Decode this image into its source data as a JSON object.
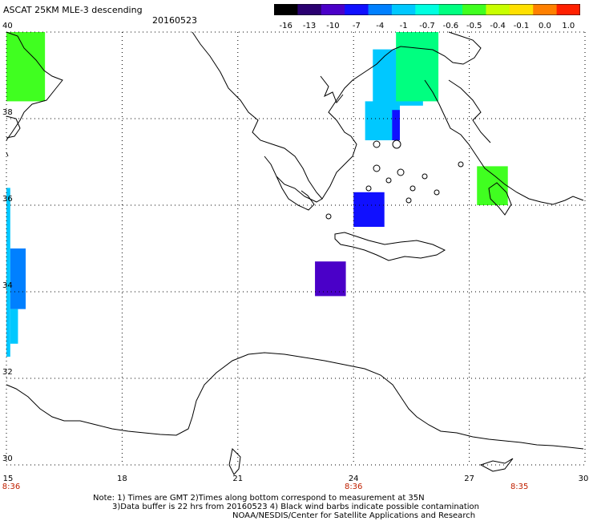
{
  "header": {
    "title": "ASCAT 25KM MLE-3 descending",
    "date": "20160523"
  },
  "colorbar": {
    "labels": [
      "-16",
      "-13",
      "-10",
      "-7",
      "-4",
      "-1",
      "-0.7",
      "-0.6",
      "-0.5",
      "-0.4",
      "-0.1",
      "0.0",
      "1.0"
    ],
    "colors": [
      "#000000",
      "#2a0070",
      "#4a00c8",
      "#1010ff",
      "#0080ff",
      "#00c8ff",
      "#00ffe0",
      "#00ff80",
      "#40ff20",
      "#c8ff00",
      "#ffe000",
      "#ff8000",
      "#ff2000"
    ]
  },
  "axes": {
    "lat_labels": [
      "40",
      "38",
      "36",
      "34",
      "32",
      "30"
    ],
    "lon_labels": [
      "15",
      "18",
      "21",
      "24",
      "27",
      "30"
    ],
    "time_labels": [
      "8:36",
      "8:36",
      "8:35"
    ]
  },
  "notes": {
    "line1": "Note: 1) Times are GMT 2)Times along bottom correspond to measurement at 35N",
    "line2": "3)Data buffer is 22 hrs from 20160523 4) Black wind barbs indicate possible contamination",
    "line3": "NOAA/NESDIS/Center for Satellite Applications and Research"
  },
  "map_data": {
    "extent": {
      "lon": [
        15,
        30
      ],
      "lat": [
        30,
        40
      ]
    },
    "swaths": [
      {
        "lon": [
          15.0,
          16.0
        ],
        "lat": [
          38.4,
          40.0
        ],
        "value": -0.5
      },
      {
        "lon": [
          15.0,
          15.1
        ],
        "lat": [
          32.5,
          36.4
        ],
        "value": -1
      },
      {
        "lon": [
          15.1,
          15.5
        ],
        "lat": [
          33.6,
          35.0
        ],
        "value": -4
      },
      {
        "lon": [
          15.1,
          15.3
        ],
        "lat": [
          32.8,
          33.6
        ],
        "value": -1
      },
      {
        "lon": [
          24.3,
          25.2
        ],
        "lat": [
          37.5,
          38.4
        ],
        "value": -1
      },
      {
        "lon": [
          25.0,
          25.2
        ],
        "lat": [
          37.5,
          38.2
        ],
        "value": -7
      },
      {
        "lon": [
          24.5,
          25.8
        ],
        "lat": [
          38.3,
          39.6
        ],
        "value": -1
      },
      {
        "lon": [
          25.1,
          26.2
        ],
        "lat": [
          38.4,
          40.0
        ],
        "value": -0.6
      },
      {
        "lon": [
          24.0,
          24.8
        ],
        "lat": [
          35.5,
          36.3
        ],
        "value": -7
      },
      {
        "lon": [
          23.0,
          23.8
        ],
        "lat": [
          33.9,
          34.7
        ],
        "value": -10
      },
      {
        "lon": [
          27.2,
          28.0
        ],
        "lat": [
          36.0,
          36.9
        ],
        "value": -0.5
      }
    ]
  }
}
